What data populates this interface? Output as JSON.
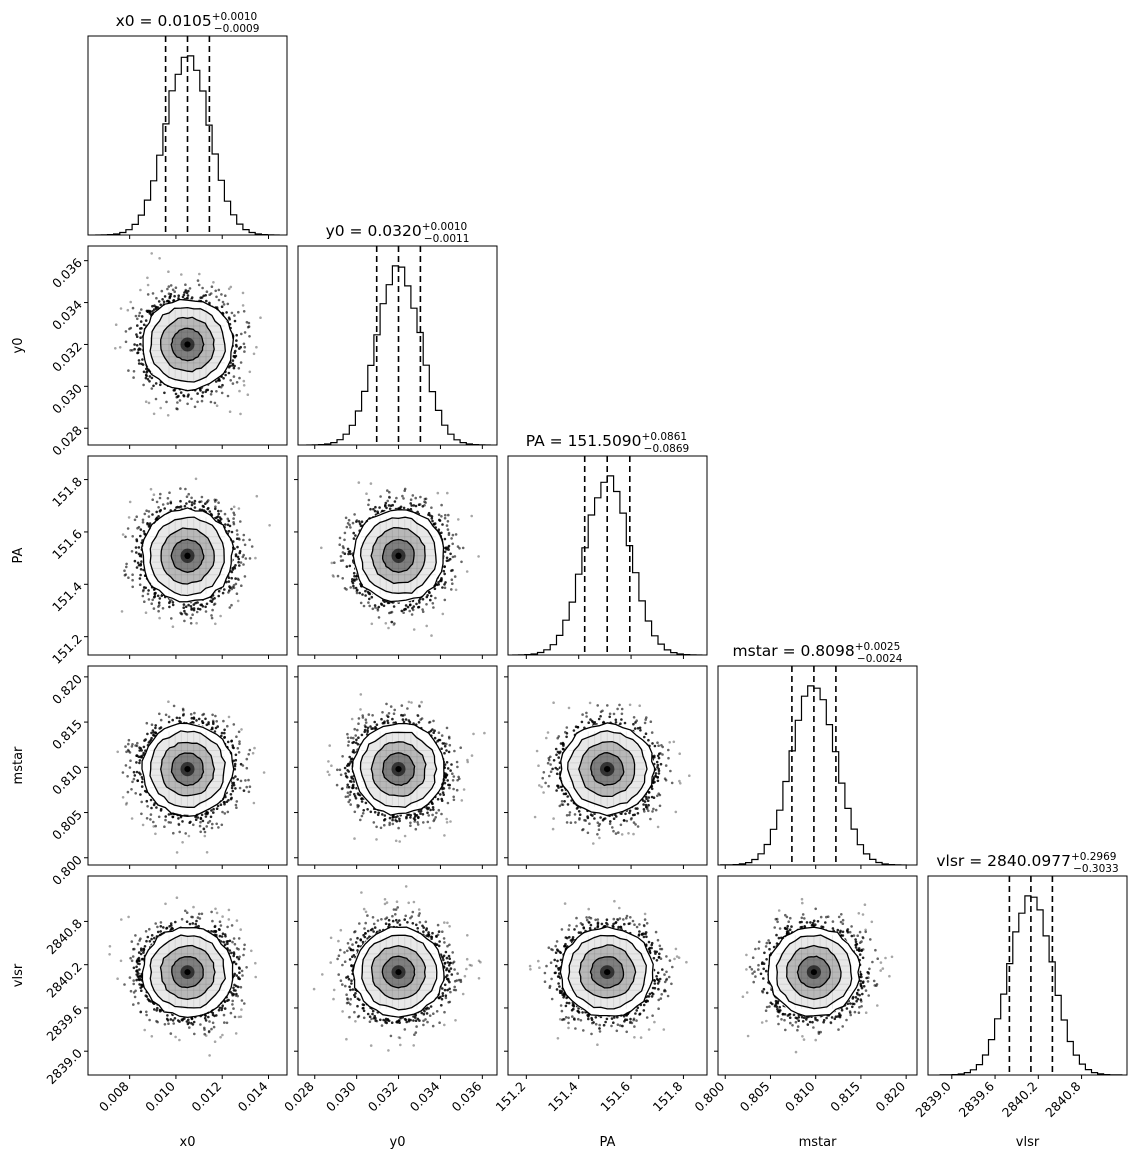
{
  "chart_data": {
    "type": "corner",
    "description_visible": "posterior corner plot",
    "parameters": [
      {
        "name": "x0",
        "median": "0.0105",
        "plus": "+0.0010",
        "minus": "−0.0009",
        "center": 0.0105,
        "sigma": 0.00095,
        "range": [
          0.0062,
          0.0148
        ],
        "ticks": [
          0.008,
          0.01,
          0.012,
          0.014
        ],
        "tick_labels": [
          "0.008",
          "0.010",
          "0.012",
          "0.014"
        ]
      },
      {
        "name": "y0",
        "median": "0.0320",
        "plus": "+0.0010",
        "minus": "−0.0011",
        "center": 0.032,
        "sigma": 0.00105,
        "range": [
          0.0272,
          0.0367
        ],
        "ticks": [
          0.028,
          0.03,
          0.032,
          0.034,
          0.036
        ],
        "tick_labels": [
          "0.028",
          "0.030",
          "0.032",
          "0.034",
          "0.036"
        ]
      },
      {
        "name": "PA",
        "median": "151.5090",
        "plus": "+0.0861",
        "minus": "−0.0869",
        "center": 151.509,
        "sigma": 0.0865,
        "range": [
          151.13,
          151.89
        ],
        "ticks": [
          151.2,
          151.4,
          151.6,
          151.8
        ],
        "tick_labels": [
          "151.2",
          "151.4",
          "151.6",
          "151.8"
        ]
      },
      {
        "name": "mstar",
        "median": "0.8098",
        "plus": "+0.0025",
        "minus": "−0.0024",
        "center": 0.8098,
        "sigma": 0.00245,
        "range": [
          0.7992,
          0.8212
        ],
        "ticks": [
          0.8,
          0.805,
          0.81,
          0.815,
          0.82
        ],
        "tick_labels": [
          "0.800",
          "0.805",
          "0.810",
          "0.815",
          "0.820"
        ]
      },
      {
        "name": "vlsr",
        "median": "2840.0977",
        "plus": "+0.2969",
        "minus": "−0.3033",
        "center": 2840.0977,
        "sigma": 0.3,
        "range": [
          2838.67,
          2841.43
        ],
        "ticks": [
          2839.0,
          2839.6,
          2840.2,
          2840.8
        ],
        "tick_labels": [
          "2839.0",
          "2839.6",
          "2840.2",
          "2840.8"
        ]
      }
    ],
    "quantile_lines": [
      0.16,
      0.5,
      0.84
    ],
    "histogram_bins": 30,
    "style": {
      "line": "#000000",
      "marker": "#000000",
      "background": "#ffffff"
    }
  }
}
